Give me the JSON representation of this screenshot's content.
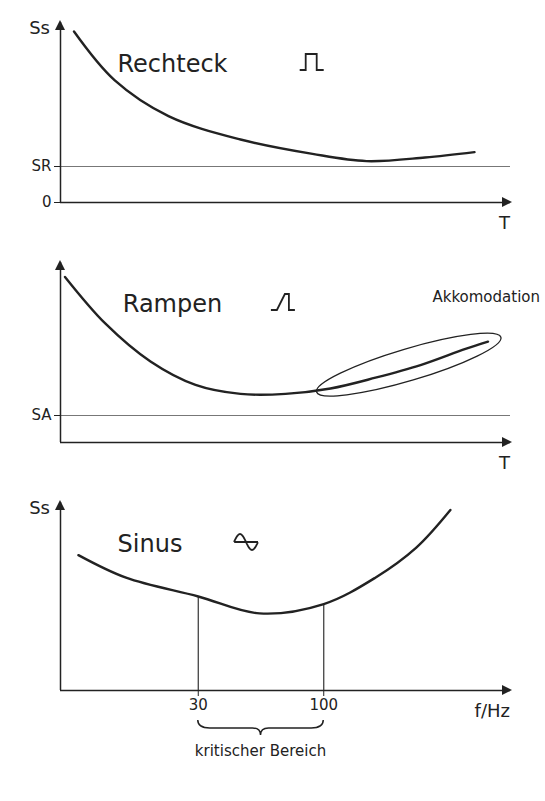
{
  "chart_data": [
    {
      "type": "line",
      "title": "Rechteck",
      "x_label": "T",
      "y_label": "Ss",
      "x": [
        0.3,
        1.2,
        2.4,
        4.0,
        5.6,
        6.8,
        8.1,
        9.2
      ],
      "values": [
        9.5,
        6.8,
        4.8,
        3.5,
        2.7,
        2.3,
        2.5,
        2.8
      ],
      "color": "#222222",
      "xlim": [
        0,
        10
      ],
      "ylim": [
        0,
        10
      ],
      "yticks": [
        0,
        {
          "value": 2,
          "label": "SR"
        }
      ],
      "tick_labels": "y",
      "grid": true
    },
    {
      "type": "line",
      "title": "Rampen",
      "x_label": "T",
      "annotation": "Akkomodation",
      "x": [
        0.1,
        1,
        2,
        3,
        4,
        5,
        6,
        7,
        8,
        9,
        9.5
      ],
      "values": [
        9.2,
        6.6,
        4.5,
        3.2,
        2.7,
        2.7,
        3.0,
        3.6,
        4.3,
        5.2,
        5.6
      ],
      "color": "#222222",
      "xlim": [
        0,
        10
      ],
      "ylim": [
        0,
        10
      ],
      "yticks": [
        {
          "value": 1.5,
          "label": "SA"
        }
      ],
      "tick_labels": "y",
      "grid": true
    },
    {
      "type": "line",
      "title": "Sinus",
      "x_label": "f/Hz",
      "y_label": "Ss",
      "annotation": "kritischer Bereich",
      "x": [
        9.5,
        15,
        30,
        54,
        100,
        164,
        243,
        337
      ],
      "values": [
        7.2,
        6.0,
        5.0,
        4.1,
        4.6,
        6.0,
        7.6,
        9.6
      ],
      "color": "#222222",
      "xlim": [
        8,
        600
      ],
      "ylim": [
        0,
        10
      ],
      "xticks": [
        30,
        100
      ],
      "log": "x",
      "tick_labels": "x"
    }
  ]
}
